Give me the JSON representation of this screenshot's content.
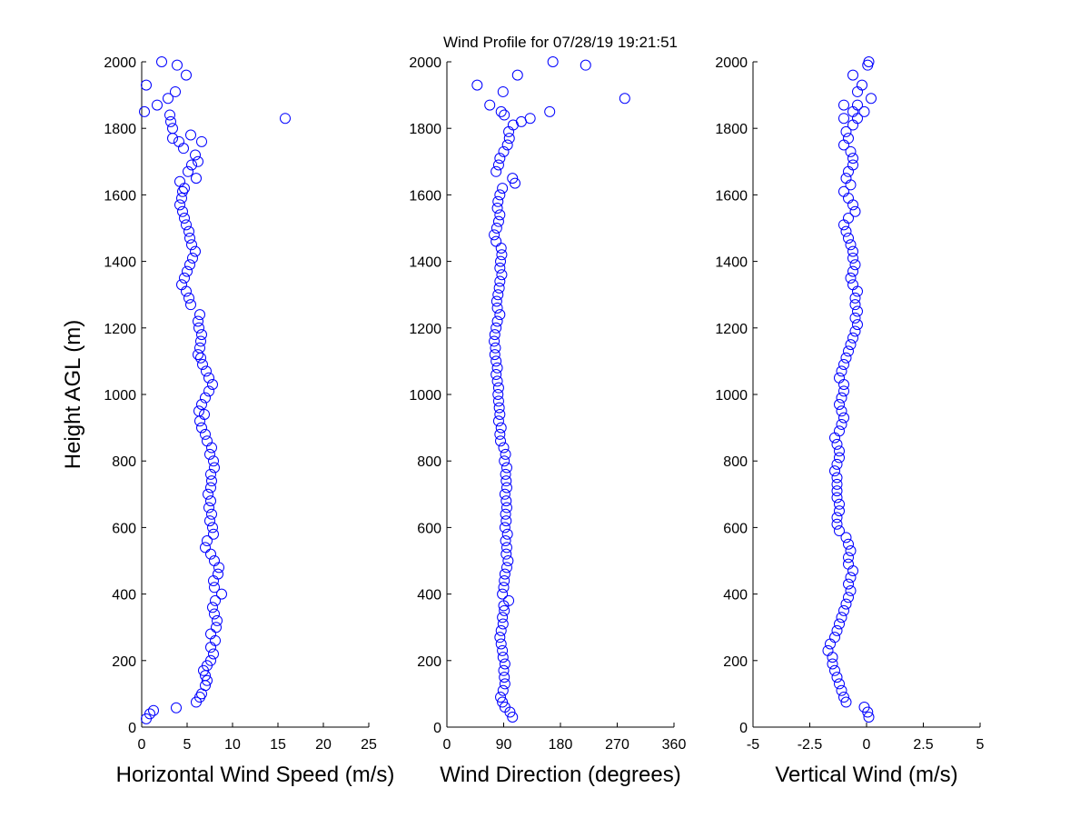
{
  "title": "Wind Profile for  07/28/19 19:21:51",
  "chart_data": [
    {
      "type": "scatter",
      "xlabel": "Horizontal Wind Speed (m/s)",
      "ylabel": "Height AGL (m)",
      "xlim": [
        0,
        25
      ],
      "ylim": [
        0,
        2000
      ],
      "xticks": [
        "0",
        "5",
        "10",
        "15",
        "20",
        "25"
      ],
      "yticks": [
        "0",
        "200",
        "400",
        "600",
        "800",
        "1000",
        "1200",
        "1400",
        "1600",
        "1800",
        "2000"
      ],
      "marker_color": "#0000ff",
      "points": [
        [
          0.5,
          25
        ],
        [
          0.9,
          40
        ],
        [
          1.3,
          50
        ],
        [
          3.8,
          58
        ],
        [
          6.0,
          75
        ],
        [
          6.4,
          90
        ],
        [
          6.6,
          100
        ],
        [
          7.0,
          125
        ],
        [
          7.2,
          140
        ],
        [
          7.0,
          155
        ],
        [
          6.8,
          170
        ],
        [
          7.2,
          185
        ],
        [
          7.6,
          200
        ],
        [
          7.9,
          220
        ],
        [
          7.6,
          240
        ],
        [
          8.1,
          260
        ],
        [
          7.6,
          280
        ],
        [
          8.2,
          300
        ],
        [
          8.3,
          320
        ],
        [
          8.0,
          340
        ],
        [
          7.8,
          360
        ],
        [
          8.1,
          380
        ],
        [
          8.8,
          400
        ],
        [
          8.0,
          420
        ],
        [
          7.9,
          440
        ],
        [
          8.4,
          460
        ],
        [
          8.5,
          480
        ],
        [
          8.0,
          500
        ],
        [
          7.6,
          520
        ],
        [
          7.0,
          540
        ],
        [
          7.2,
          560
        ],
        [
          7.9,
          580
        ],
        [
          7.8,
          600
        ],
        [
          7.5,
          620
        ],
        [
          7.7,
          640
        ],
        [
          7.4,
          660
        ],
        [
          7.6,
          680
        ],
        [
          7.3,
          700
        ],
        [
          7.6,
          720
        ],
        [
          7.7,
          740
        ],
        [
          7.6,
          760
        ],
        [
          8.0,
          780
        ],
        [
          7.9,
          800
        ],
        [
          7.5,
          820
        ],
        [
          7.7,
          840
        ],
        [
          7.2,
          860
        ],
        [
          7.0,
          880
        ],
        [
          6.6,
          900
        ],
        [
          6.4,
          920
        ],
        [
          6.9,
          940
        ],
        [
          6.3,
          950
        ],
        [
          6.6,
          970
        ],
        [
          7.0,
          990
        ],
        [
          7.4,
          1010
        ],
        [
          7.8,
          1030
        ],
        [
          7.4,
          1050
        ],
        [
          7.1,
          1070
        ],
        [
          6.7,
          1090
        ],
        [
          6.5,
          1110
        ],
        [
          6.2,
          1120
        ],
        [
          6.4,
          1140
        ],
        [
          6.5,
          1160
        ],
        [
          6.6,
          1180
        ],
        [
          6.3,
          1200
        ],
        [
          6.2,
          1220
        ],
        [
          6.4,
          1240
        ],
        [
          5.4,
          1270
        ],
        [
          5.2,
          1290
        ],
        [
          4.9,
          1310
        ],
        [
          4.4,
          1330
        ],
        [
          4.7,
          1350
        ],
        [
          5.0,
          1370
        ],
        [
          5.3,
          1390
        ],
        [
          5.6,
          1410
        ],
        [
          5.9,
          1430
        ],
        [
          5.5,
          1450
        ],
        [
          5.3,
          1470
        ],
        [
          5.2,
          1490
        ],
        [
          4.9,
          1510
        ],
        [
          4.7,
          1530
        ],
        [
          4.5,
          1550
        ],
        [
          4.2,
          1570
        ],
        [
          4.4,
          1590
        ],
        [
          4.5,
          1610
        ],
        [
          4.7,
          1620
        ],
        [
          4.2,
          1640
        ],
        [
          6.0,
          1650
        ],
        [
          5.1,
          1670
        ],
        [
          5.5,
          1690
        ],
        [
          6.2,
          1700
        ],
        [
          5.9,
          1720
        ],
        [
          4.6,
          1740
        ],
        [
          4.1,
          1760
        ],
        [
          6.6,
          1760
        ],
        [
          3.4,
          1770
        ],
        [
          5.4,
          1780
        ],
        [
          3.4,
          1800
        ],
        [
          3.2,
          1820
        ],
        [
          15.8,
          1830
        ],
        [
          3.1,
          1840
        ],
        [
          0.3,
          1850
        ],
        [
          1.7,
          1870
        ],
        [
          2.9,
          1890
        ],
        [
          3.7,
          1910
        ],
        [
          0.5,
          1930
        ],
        [
          4.9,
          1960
        ],
        [
          3.9,
          1990
        ],
        [
          2.2,
          2000
        ]
      ]
    },
    {
      "type": "scatter",
      "xlabel": "Wind Direction (degrees)",
      "xlim": [
        0,
        360
      ],
      "ylim": [
        0,
        2000
      ],
      "xticks": [
        "0",
        "90",
        "180",
        "270",
        "360"
      ],
      "yticks": [
        "0",
        "200",
        "400",
        "600",
        "800",
        "1000",
        "1200",
        "1400",
        "1600",
        "1800",
        "2000"
      ],
      "marker_color": "#0000ff",
      "points": [
        [
          104,
          30
        ],
        [
          100,
          45
        ],
        [
          92,
          60
        ],
        [
          88,
          75
        ],
        [
          85,
          90
        ],
        [
          89,
          110
        ],
        [
          92,
          130
        ],
        [
          91,
          150
        ],
        [
          90,
          170
        ],
        [
          92,
          190
        ],
        [
          89,
          210
        ],
        [
          88,
          230
        ],
        [
          86,
          250
        ],
        [
          84,
          270
        ],
        [
          86,
          290
        ],
        [
          89,
          310
        ],
        [
          88,
          330
        ],
        [
          91,
          350
        ],
        [
          90,
          365
        ],
        [
          98,
          380
        ],
        [
          88,
          400
        ],
        [
          90,
          420
        ],
        [
          91,
          440
        ],
        [
          92,
          460
        ],
        [
          95,
          480
        ],
        [
          97,
          500
        ],
        [
          94,
          520
        ],
        [
          95,
          540
        ],
        [
          93,
          560
        ],
        [
          96,
          580
        ],
        [
          92,
          600
        ],
        [
          94,
          620
        ],
        [
          93,
          640
        ],
        [
          95,
          660
        ],
        [
          94,
          680
        ],
        [
          92,
          700
        ],
        [
          95,
          720
        ],
        [
          94,
          740
        ],
        [
          93,
          760
        ],
        [
          95,
          780
        ],
        [
          91,
          800
        ],
        [
          93,
          820
        ],
        [
          90,
          840
        ],
        [
          85,
          860
        ],
        [
          84,
          880
        ],
        [
          86,
          900
        ],
        [
          82,
          920
        ],
        [
          84,
          940
        ],
        [
          83,
          960
        ],
        [
          82,
          980
        ],
        [
          81,
          1000
        ],
        [
          82,
          1020
        ],
        [
          80,
          1040
        ],
        [
          78,
          1060
        ],
        [
          80,
          1080
        ],
        [
          78,
          1100
        ],
        [
          76,
          1120
        ],
        [
          77,
          1140
        ],
        [
          75,
          1160
        ],
        [
          76,
          1180
        ],
        [
          78,
          1200
        ],
        [
          80,
          1220
        ],
        [
          84,
          1240
        ],
        [
          80,
          1260
        ],
        [
          79,
          1280
        ],
        [
          81,
          1300
        ],
        [
          83,
          1320
        ],
        [
          84,
          1340
        ],
        [
          87,
          1360
        ],
        [
          84,
          1380
        ],
        [
          85,
          1400
        ],
        [
          87,
          1420
        ],
        [
          86,
          1440
        ],
        [
          78,
          1460
        ],
        [
          75,
          1480
        ],
        [
          79,
          1500
        ],
        [
          82,
          1520
        ],
        [
          84,
          1540
        ],
        [
          80,
          1560
        ],
        [
          81,
          1580
        ],
        [
          84,
          1600
        ],
        [
          88,
          1620
        ],
        [
          108,
          1635
        ],
        [
          104,
          1650
        ],
        [
          78,
          1670
        ],
        [
          82,
          1690
        ],
        [
          84,
          1710
        ],
        [
          90,
          1730
        ],
        [
          96,
          1750
        ],
        [
          99,
          1770
        ],
        [
          98,
          1790
        ],
        [
          105,
          1810
        ],
        [
          118,
          1820
        ],
        [
          132,
          1830
        ],
        [
          91,
          1840
        ],
        [
          86,
          1850
        ],
        [
          163,
          1850
        ],
        [
          68,
          1870
        ],
        [
          282,
          1890
        ],
        [
          89,
          1910
        ],
        [
          48,
          1930
        ],
        [
          112,
          1960
        ],
        [
          220,
          1990
        ],
        [
          168,
          2000
        ]
      ]
    },
    {
      "type": "scatter",
      "xlabel": "Vertical Wind (m/s)",
      "xlim": [
        -5,
        5
      ],
      "ylim": [
        0,
        2000
      ],
      "xticks": [
        "-5",
        "-2.5",
        "0",
        "2.5",
        "5"
      ],
      "yticks": [
        "0",
        "200",
        "400",
        "600",
        "800",
        "1000",
        "1200",
        "1400",
        "1600",
        "1800",
        "2000"
      ],
      "marker_color": "#0000ff",
      "points": [
        [
          0.1,
          30
        ],
        [
          0.05,
          45
        ],
        [
          -0.1,
          60
        ],
        [
          -0.9,
          75
        ],
        [
          -1.0,
          90
        ],
        [
          -1.1,
          110
        ],
        [
          -1.2,
          130
        ],
        [
          -1.3,
          150
        ],
        [
          -1.4,
          170
        ],
        [
          -1.5,
          190
        ],
        [
          -1.5,
          210
        ],
        [
          -1.7,
          230
        ],
        [
          -1.6,
          250
        ],
        [
          -1.4,
          270
        ],
        [
          -1.3,
          290
        ],
        [
          -1.2,
          310
        ],
        [
          -1.1,
          330
        ],
        [
          -1.0,
          350
        ],
        [
          -0.9,
          370
        ],
        [
          -0.8,
          390
        ],
        [
          -0.7,
          410
        ],
        [
          -0.8,
          430
        ],
        [
          -0.7,
          450
        ],
        [
          -0.6,
          470
        ],
        [
          -0.8,
          490
        ],
        [
          -0.8,
          510
        ],
        [
          -0.7,
          530
        ],
        [
          -0.8,
          550
        ],
        [
          -0.9,
          570
        ],
        [
          -1.2,
          590
        ],
        [
          -1.3,
          610
        ],
        [
          -1.3,
          630
        ],
        [
          -1.2,
          650
        ],
        [
          -1.2,
          670
        ],
        [
          -1.3,
          690
        ],
        [
          -1.3,
          710
        ],
        [
          -1.3,
          730
        ],
        [
          -1.3,
          750
        ],
        [
          -1.4,
          770
        ],
        [
          -1.3,
          790
        ],
        [
          -1.2,
          810
        ],
        [
          -1.2,
          830
        ],
        [
          -1.3,
          850
        ],
        [
          -1.4,
          870
        ],
        [
          -1.2,
          890
        ],
        [
          -1.1,
          910
        ],
        [
          -1.0,
          930
        ],
        [
          -1.1,
          950
        ],
        [
          -1.2,
          970
        ],
        [
          -1.1,
          990
        ],
        [
          -1.0,
          1010
        ],
        [
          -1.0,
          1030
        ],
        [
          -1.2,
          1050
        ],
        [
          -1.1,
          1070
        ],
        [
          -1.0,
          1090
        ],
        [
          -0.9,
          1110
        ],
        [
          -0.8,
          1130
        ],
        [
          -0.7,
          1150
        ],
        [
          -0.6,
          1170
        ],
        [
          -0.5,
          1190
        ],
        [
          -0.4,
          1210
        ],
        [
          -0.5,
          1230
        ],
        [
          -0.4,
          1250
        ],
        [
          -0.5,
          1270
        ],
        [
          -0.5,
          1290
        ],
        [
          -0.4,
          1310
        ],
        [
          -0.6,
          1330
        ],
        [
          -0.7,
          1350
        ],
        [
          -0.6,
          1370
        ],
        [
          -0.5,
          1390
        ],
        [
          -0.6,
          1410
        ],
        [
          -0.6,
          1430
        ],
        [
          -0.7,
          1450
        ],
        [
          -0.8,
          1470
        ],
        [
          -0.9,
          1490
        ],
        [
          -1.0,
          1510
        ],
        [
          -0.8,
          1530
        ],
        [
          -0.5,
          1550
        ],
        [
          -0.6,
          1570
        ],
        [
          -0.8,
          1590
        ],
        [
          -1.0,
          1610
        ],
        [
          -0.7,
          1630
        ],
        [
          -0.9,
          1650
        ],
        [
          -0.8,
          1670
        ],
        [
          -0.6,
          1690
        ],
        [
          -0.6,
          1710
        ],
        [
          -0.7,
          1730
        ],
        [
          -1.0,
          1750
        ],
        [
          -0.8,
          1770
        ],
        [
          -0.9,
          1790
        ],
        [
          -0.6,
          1810
        ],
        [
          -0.4,
          1830
        ],
        [
          -1.0,
          1830
        ],
        [
          -0.6,
          1850
        ],
        [
          -0.1,
          1850
        ],
        [
          -0.4,
          1870
        ],
        [
          -1.0,
          1870
        ],
        [
          0.2,
          1890
        ],
        [
          -0.4,
          1910
        ],
        [
          -0.2,
          1930
        ],
        [
          -0.6,
          1960
        ],
        [
          0.05,
          1990
        ],
        [
          0.1,
          2000
        ]
      ]
    }
  ]
}
